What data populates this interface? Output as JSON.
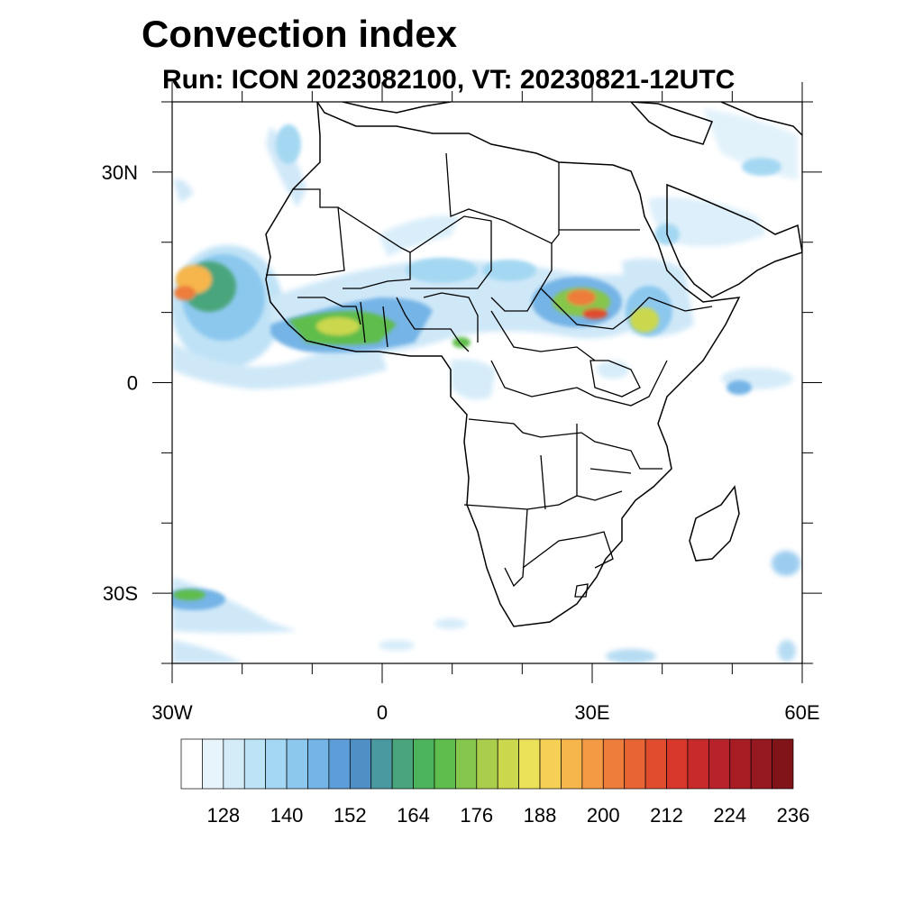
{
  "title": "Convection index",
  "subtitle": "Run: ICON 2023082100,  VT: 20230821-12UTC",
  "lat_labels": [
    {
      "text": "30N",
      "lat": 30
    },
    {
      "text": "0",
      "lat": 0
    },
    {
      "text": "30S",
      "lat": -30
    }
  ],
  "lon_labels": [
    {
      "text": "30W",
      "lon": -30
    },
    {
      "text": "0",
      "lon": 0
    },
    {
      "text": "30E",
      "lon": 30
    },
    {
      "text": "60E",
      "lon": 60
    }
  ],
  "map_extent": {
    "lon_min": -30,
    "lon_max": 60,
    "lat_min": -40,
    "lat_max": 40
  },
  "colorbar": {
    "colors": [
      "#ffffff",
      "#e8f4fb",
      "#d3ecf8",
      "#bde4f6",
      "#a4d8f2",
      "#8cc8ee",
      "#74b4e6",
      "#5e9ed8",
      "#4f8fc6",
      "#4a98a0",
      "#4aa57c",
      "#4cb45c",
      "#5ebd4c",
      "#86c64c",
      "#aace4c",
      "#cbd84e",
      "#ece25a",
      "#f6d054",
      "#f6b64c",
      "#f49a44",
      "#ee7c3a",
      "#e86434",
      "#e04c2e",
      "#d8382c",
      "#c82a2c",
      "#b8222a",
      "#a81c24",
      "#961820",
      "#801418"
    ],
    "tick_labels": [
      "128",
      "140",
      "152",
      "164",
      "176",
      "188",
      "200",
      "212",
      "224",
      "236"
    ]
  }
}
